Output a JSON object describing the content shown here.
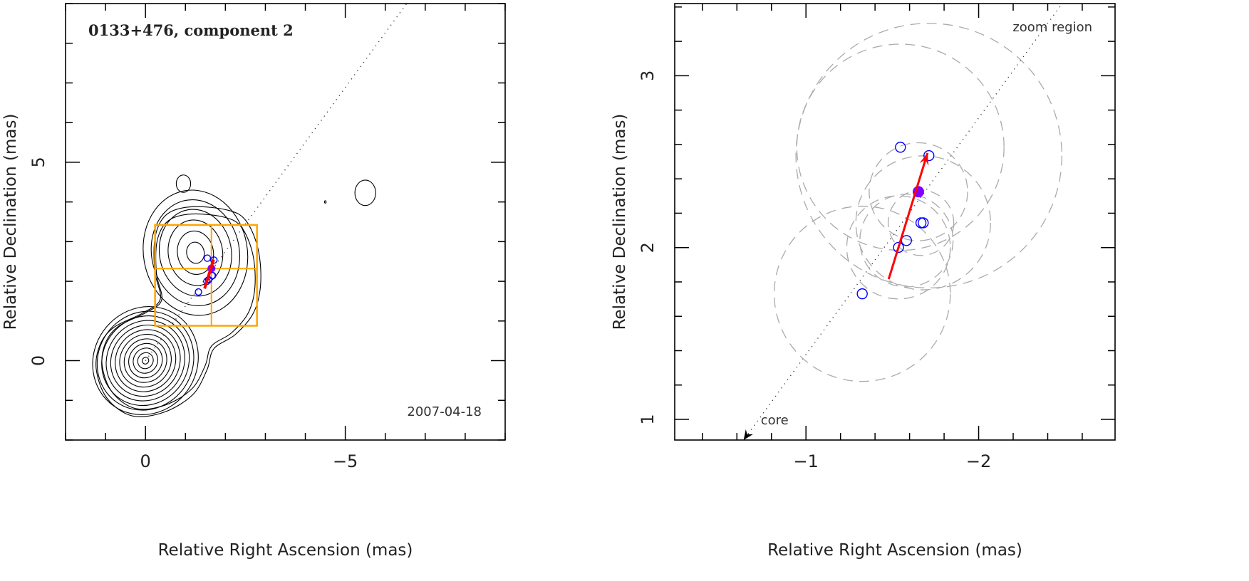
{
  "chart_data": [
    {
      "type": "contour",
      "title": "0133+476, component 2",
      "annotation": "2007-04-18",
      "xlabel": "Relative Right Ascension (mas)",
      "ylabel": "Relative Declination (mas)",
      "xlim": [
        2,
        -9
      ],
      "ylim": [
        -2,
        9
      ],
      "xticks": [
        0,
        -5
      ],
      "yticks": [
        0,
        5
      ],
      "xtick_labels": [
        "0",
        "−5"
      ],
      "ytick_labels": [
        "0",
        "5"
      ],
      "minor_step": 1,
      "contours": {
        "core": {
          "center": [
            0,
            0
          ],
          "radii": [
            0.08,
            0.19,
            0.3,
            0.41,
            0.52,
            0.63,
            0.74,
            0.85,
            0.96,
            1.07,
            1.18,
            1.29
          ],
          "aspect": 1.08,
          "angle_deg": 35
        },
        "component": {
          "center": [
            -1.25,
            2.72
          ],
          "radii": [
            0.22,
            0.45,
            0.68,
            0.9,
            1.1,
            1.3
          ],
          "aspect": 1.22,
          "angle_deg": -10
        },
        "envelope": [
          [
            1.23,
            -0.23
          ],
          [
            0.96,
            -0.95
          ],
          [
            0.34,
            -1.39
          ],
          [
            -0.46,
            -1.3
          ],
          [
            -1.18,
            -0.86
          ],
          [
            -1.54,
            -0.23
          ],
          [
            -1.71,
            0.3
          ],
          [
            -2.25,
            0.66
          ],
          [
            -2.7,
            1.2
          ],
          [
            -2.88,
            1.91
          ],
          [
            -2.82,
            2.8
          ],
          [
            -2.52,
            3.52
          ],
          [
            -2.07,
            3.79
          ],
          [
            -1.18,
            3.88
          ],
          [
            -0.55,
            3.7
          ],
          [
            -0.25,
            3.16
          ],
          [
            -0.23,
            2.27
          ],
          [
            -0.37,
            1.55
          ],
          [
            0.07,
            1.2
          ],
          [
            0.79,
            0.84
          ],
          [
            1.14,
            0.39
          ]
        ],
        "blobs": [
          {
            "center": [
              -0.95,
              4.46
            ],
            "rx": 0.18,
            "ry": 0.22
          },
          {
            "center": [
              -5.5,
              4.23
            ],
            "rx": 0.26,
            "ry": 0.32
          },
          {
            "center": [
              -4.5,
              4.0
            ],
            "rx": 0.02,
            "ry": 0.03
          }
        ]
      },
      "zoom_box": {
        "xlim": [
          -0.24,
          -2.79
        ],
        "ylim": [
          0.88,
          3.42
        ],
        "cross": [
          -1.65,
          2.32
        ]
      },
      "colors": {
        "contour": "#000000",
        "zoom_box": "#ffa500",
        "points": "#0000ff",
        "arrow": "#ff0000",
        "fit": "#8000ff"
      }
    },
    {
      "type": "scatter",
      "xlabel": "Relative Right Ascension (mas)",
      "ylabel": "Relative Declination (mas)",
      "annotation": "zoom region",
      "core_label": "core",
      "xlim": [
        -0.24,
        -2.79
      ],
      "ylim": [
        0.88,
        3.42
      ],
      "xticks": [
        -1,
        -2
      ],
      "yticks": [
        1,
        2,
        3
      ],
      "xtick_labels": [
        "−1",
        "−2"
      ],
      "ytick_labels": [
        "1",
        "2",
        "3"
      ],
      "minor_step": 0.2,
      "ridge_line_slope": -1.377,
      "points": [
        {
          "x": -1.547,
          "y": 2.584,
          "err_radius": 0.6
        },
        {
          "x": -1.712,
          "y": 2.535,
          "err_radius": 0.77
        },
        {
          "x": -1.666,
          "y": 2.144,
          "err_radius": 0.19
        },
        {
          "x": -1.679,
          "y": 2.144,
          "err_radius": 0.39
        },
        {
          "x": -1.582,
          "y": 2.041,
          "err_radius": 0.27
        },
        {
          "x": -1.536,
          "y": 2.001,
          "err_radius": 0.3
        },
        {
          "x": -1.326,
          "y": 1.731,
          "err_radius": 0.51
        }
      ],
      "fit_point": {
        "x": -1.651,
        "y": 2.325,
        "err_radius": 0.285
      },
      "velocity_arrow": {
        "from": [
          -1.479,
          1.816
        ],
        "to": [
          -1.704,
          2.55
        ]
      },
      "colors": {
        "points": "#0000ff",
        "fit": "#8000ff",
        "arrow": "#ff0000",
        "circles": "#aaaaaa"
      }
    }
  ]
}
